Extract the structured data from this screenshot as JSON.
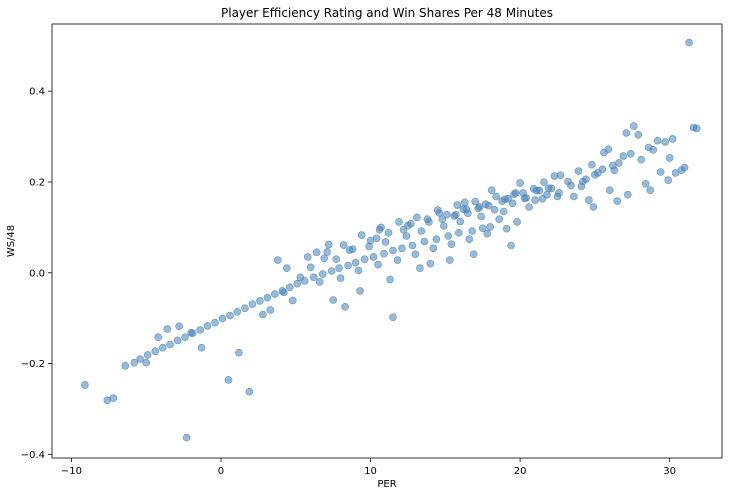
{
  "chart_data": {
    "type": "scatter",
    "title": "Player Efficiency Rating and Win Shares Per 48 Minutes",
    "xlabel": "PER",
    "ylabel": "WS/48",
    "xlim": [
      -11.3,
      33.5
    ],
    "ylim": [
      -0.408,
      0.548
    ],
    "xticks": [
      -10,
      0,
      10,
      20,
      30
    ],
    "yticks": [
      -0.4,
      -0.2,
      0.0,
      0.2,
      0.4
    ],
    "xtick_labels": [
      "−10",
      "0",
      "10",
      "20",
      "30"
    ],
    "ytick_labels": [
      "−0.4",
      "−0.2",
      "0.0",
      "0.2",
      "0.4"
    ],
    "grid": false,
    "legend": "none",
    "point_color": "#4682b4",
    "point_opacity": 0.55,
    "series": [
      {
        "x": [
          31.3,
          31.6,
          31.8,
          30.2,
          30.8,
          29.7,
          29.2,
          28.9,
          27.6,
          27.9,
          27.1,
          26.6,
          30.4,
          30.0,
          29.4,
          28.6,
          28.1,
          27.4,
          26.9,
          26.2,
          25.6,
          25.9,
          26.3,
          25.2,
          24.8,
          25.5,
          24.4,
          23.9,
          23.2,
          22.7,
          22.1,
          21.6,
          21.3,
          20.9,
          21.8,
          22.5,
          23.6,
          24.1,
          20.4,
          21.0,
          19.6,
          18.8,
          17.9,
          17.2,
          19.2,
          20.2,
          18.3,
          16.5,
          15.6,
          14.8,
          16.2,
          19.5,
          21.5,
          20.6,
          24.6,
          26.0,
          27.2,
          28.4,
          18.0,
          19.8,
          17.5,
          18.6,
          16.8,
          15.9,
          15.2,
          14.4,
          13.6,
          12.8,
          12.1,
          11.5,
          10.9,
          10.2,
          9.6,
          9.0,
          8.5,
          7.9,
          7.4,
          6.8,
          6.2,
          5.6,
          5.1,
          4.6,
          4.1,
          3.6,
          3.1,
          2.6,
          2.1,
          1.6,
          1.1,
          0.6,
          0.1,
          -0.4,
          -0.9,
          -1.4,
          -1.9,
          -2.4,
          -2.9,
          -3.4,
          -3.9,
          -4.4,
          -4.9,
          -5.4,
          -5.8,
          -6.4,
          -7.6,
          -7.2,
          -9.1,
          -2.3,
          0.5,
          1.9,
          1.2,
          -1.3,
          -2.0,
          -2.8,
          -3.6,
          -4.2,
          -5.0,
          2.8,
          3.3,
          4.2,
          4.8,
          5.3,
          6.0,
          6.6,
          7.1,
          7.7,
          8.2,
          8.8,
          9.4,
          10.0,
          10.6,
          11.2,
          11.9,
          12.5,
          13.1,
          13.8,
          14.5,
          15.1,
          15.8,
          16.4,
          17.0,
          17.7,
          18.4,
          19.0,
          19.7,
          20.3,
          21.1,
          21.9,
          22.6,
          23.4,
          24.2,
          25.0,
          9.2,
          10.5,
          11.8,
          13.0,
          14.2,
          15.4,
          16.6,
          17.8,
          19.1,
          8.0,
          9.9,
          11.0,
          12.4,
          13.4,
          14.9,
          16.0,
          17.4,
          18.9,
          6.9,
          8.6,
          10.4,
          12.2,
          13.9,
          15.7,
          17.3,
          7.5,
          9.3,
          11.3,
          13.3,
          15.3,
          19.4,
          11.5,
          14.0,
          16.9,
          5.8,
          6.4,
          7.2,
          10.7,
          12.7,
          14.6,
          16.3,
          18.1,
          20.0,
          22.3,
          4.4,
          3.8,
          8.3,
          24.9,
          26.5,
          28.7,
          29.9,
          31.0
        ],
        "y": [
          0.507,
          0.32,
          0.318,
          0.295,
          0.226,
          0.288,
          0.291,
          0.271,
          0.323,
          0.304,
          0.308,
          0.242,
          0.22,
          0.253,
          0.222,
          0.276,
          0.249,
          0.262,
          0.257,
          0.236,
          0.265,
          0.272,
          0.226,
          0.22,
          0.238,
          0.228,
          0.206,
          0.224,
          0.201,
          0.215,
          0.186,
          0.2,
          0.181,
          0.185,
          0.172,
          0.168,
          0.168,
          0.19,
          0.165,
          0.16,
          0.173,
          0.158,
          0.148,
          0.142,
          0.163,
          0.176,
          0.139,
          0.131,
          0.125,
          0.118,
          0.14,
          0.153,
          0.163,
          0.145,
          0.16,
          0.182,
          0.172,
          0.196,
          0.101,
          0.112,
          0.098,
          0.118,
          0.092,
          0.088,
          0.081,
          0.074,
          0.069,
          0.06,
          0.054,
          0.049,
          0.042,
          0.035,
          0.03,
          0.022,
          0.016,
          0.01,
          0.004,
          -0.003,
          -0.01,
          -0.018,
          -0.024,
          -0.032,
          -0.04,
          -0.047,
          -0.055,
          -0.062,
          -0.069,
          -0.078,
          -0.086,
          -0.094,
          -0.101,
          -0.11,
          -0.117,
          -0.126,
          -0.133,
          -0.142,
          -0.149,
          -0.158,
          -0.165,
          -0.173,
          -0.181,
          -0.19,
          -0.198,
          -0.205,
          -0.281,
          -0.276,
          -0.247,
          -0.363,
          -0.236,
          -0.262,
          -0.176,
          -0.165,
          -0.132,
          -0.118,
          -0.124,
          -0.142,
          -0.198,
          -0.092,
          -0.082,
          -0.043,
          -0.061,
          -0.01,
          0.012,
          -0.02,
          0.046,
          0.03,
          0.061,
          0.052,
          0.083,
          0.071,
          0.095,
          0.088,
          0.112,
          0.104,
          0.122,
          0.118,
          0.138,
          0.128,
          0.149,
          0.14,
          0.157,
          0.151,
          0.168,
          0.162,
          0.176,
          0.164,
          0.181,
          0.186,
          0.176,
          0.192,
          0.201,
          0.216,
          0.005,
          0.018,
          0.028,
          0.041,
          0.054,
          0.063,
          0.074,
          0.086,
          0.097,
          -0.012,
          0.058,
          0.068,
          0.081,
          0.092,
          0.103,
          0.113,
          0.124,
          0.135,
          0.032,
          0.05,
          0.076,
          0.095,
          0.112,
          0.128,
          0.145,
          -0.06,
          -0.04,
          -0.015,
          0.01,
          0.028,
          0.06,
          -0.098,
          0.02,
          0.041,
          0.035,
          0.045,
          0.062,
          0.1,
          0.108,
          0.132,
          0.155,
          0.182,
          0.198,
          0.213,
          0.01,
          0.028,
          -0.075,
          0.145,
          0.158,
          0.182,
          0.204,
          0.232
        ]
      }
    ]
  }
}
